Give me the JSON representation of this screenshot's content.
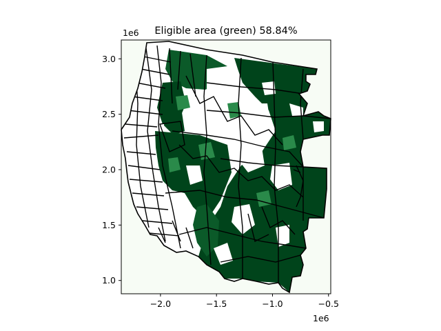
{
  "figure": {
    "title": "Eligible area (green) 58.84%",
    "x_offset_label": "1e6",
    "y_offset_label": "1e6"
  },
  "chart_data": {
    "type": "map",
    "title": "Eligible area (green) 58.84%",
    "eligible_share_percent": 58.84,
    "x_ticks": [
      {
        "value": -2.0,
        "label": "−2.0"
      },
      {
        "value": -1.5,
        "label": "−1.5"
      },
      {
        "value": -1.0,
        "label": "−1.0"
      },
      {
        "value": -0.5,
        "label": "−0.5"
      }
    ],
    "y_ticks": [
      {
        "value": 1.0,
        "label": "1.0"
      },
      {
        "value": 1.5,
        "label": "1.5"
      },
      {
        "value": 2.0,
        "label": "2.0"
      },
      {
        "value": 2.5,
        "label": "2.5"
      },
      {
        "value": 3.0,
        "label": "3.0"
      }
    ],
    "xlim": [
      -2.35,
      -0.48
    ],
    "ylim": [
      0.88,
      3.17
    ],
    "axis_scale": "1e6",
    "colors": {
      "background": "#f7fcf5",
      "eligible": "#00441b",
      "eligible_mid": "#2a8a4a",
      "ineligible": "#ffffff",
      "boundaries": "#000000"
    }
  }
}
